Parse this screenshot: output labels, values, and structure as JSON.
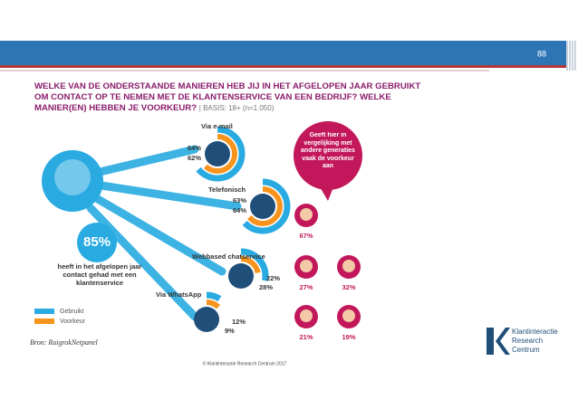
{
  "page_number": "88",
  "title": {
    "question": "WELKE VAN DE ONDERSTAANDE MANIEREN HEB JIJ IN HET AFGELOPEN JAAR GEBRUIKT OM CONTACT OP TE NEMEN MET DE KLANTENSERVICE VAN EEN BEDRIJF? WELKE MANIER(EN) HEBBEN JE VOORKEUR?",
    "basis": "BASIS: 18+ (n=1.050)"
  },
  "headline": {
    "value": 85,
    "label": "85%",
    "text": "heeft in het afgelopen jaar contact gehad met een klantenservice"
  },
  "legend": {
    "used": {
      "name": "Gebruikt",
      "color": "#29abe2"
    },
    "preferred": {
      "name": "Voorkeur",
      "color": "#f7941d"
    }
  },
  "channels": [
    {
      "name": "Via e-mail",
      "used": 64,
      "used_label": "64%",
      "preferred": 62,
      "preferred_label": "62%"
    },
    {
      "name": "Telefonisch",
      "used": 63,
      "used_label": "63%",
      "preferred": 64,
      "preferred_label": "64%"
    },
    {
      "name": "Webbased chatservice",
      "used": 28,
      "used_label": "28%",
      "preferred": 22,
      "preferred_label": "22%"
    },
    {
      "name": "Via WhatsApp",
      "used": 9,
      "used_label": "9%",
      "preferred": 12,
      "preferred_label": "12%"
    }
  ],
  "bubble": "Geeft hier in vergelijking met andere generaties vaak de voorkeur aan",
  "generations": [
    {
      "value": 67,
      "label": "67%"
    },
    {
      "value": 27,
      "label": "27%"
    },
    {
      "value": 32,
      "label": "32%"
    },
    {
      "value": 21,
      "label": "21%"
    },
    {
      "value": 19,
      "label": "19%"
    }
  ],
  "source": "Bron: RuigrokNetpanel",
  "footer": "© Klantinteractie Research Centrum 2017",
  "logo": "Klantinteractie Research Centrum"
}
